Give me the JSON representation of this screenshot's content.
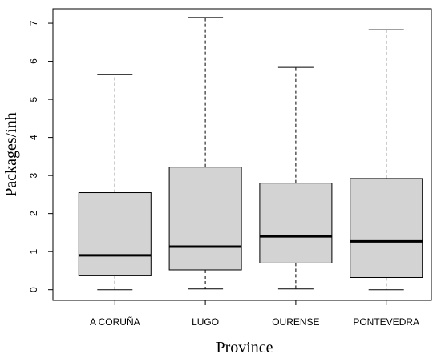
{
  "chart_data": {
    "type": "boxplot",
    "xlabel": "Province",
    "ylabel": "Packages/inh",
    "categories": [
      "A CORUÑA",
      "LUGO",
      "OURENSE",
      "PONTEVEDRA"
    ],
    "ylim": [
      -0.28,
      7.38
    ],
    "yticks": [
      0,
      1,
      2,
      3,
      4,
      5,
      6,
      7
    ],
    "grid": false,
    "box_color": "#d3d3d3",
    "boxes": [
      {
        "category": "A CORUÑA",
        "whisker_low": 0.0,
        "q1": 0.38,
        "median": 0.9,
        "q3": 2.55,
        "whisker_high": 5.65
      },
      {
        "category": "LUGO",
        "whisker_low": 0.02,
        "q1": 0.52,
        "median": 1.13,
        "q3": 3.22,
        "whisker_high": 7.15
      },
      {
        "category": "OURENSE",
        "whisker_low": 0.02,
        "q1": 0.7,
        "median": 1.4,
        "q3": 2.8,
        "whisker_high": 5.84
      },
      {
        "category": "PONTEVEDRA",
        "whisker_low": 0.0,
        "q1": 0.32,
        "median": 1.27,
        "q3": 2.92,
        "whisker_high": 6.83
      }
    ]
  }
}
